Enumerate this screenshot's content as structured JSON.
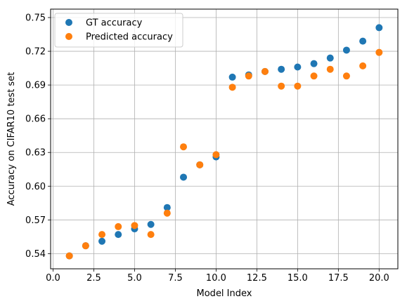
{
  "chart_data": {
    "type": "scatter",
    "xlabel": "Model Index",
    "ylabel": "Accuracy on CIFAR10 test set",
    "xlim": [
      -0.15,
      21.15
    ],
    "ylim": [
      0.5265,
      0.7575
    ],
    "xticks": [
      0.0,
      2.5,
      5.0,
      7.5,
      10.0,
      12.5,
      15.0,
      17.5,
      20.0
    ],
    "xtick_labels": [
      "0.0",
      "2.5",
      "5.0",
      "7.5",
      "10.0",
      "12.5",
      "15.0",
      "17.5",
      "20.0"
    ],
    "yticks": [
      0.54,
      0.57,
      0.6,
      0.63,
      0.66,
      0.69,
      0.72,
      0.75
    ],
    "ytick_labels": [
      "0.54",
      "0.57",
      "0.60",
      "0.63",
      "0.66",
      "0.69",
      "0.72",
      "0.75"
    ],
    "grid": true,
    "legend_position": "top-left",
    "series": [
      {
        "name": "GT accuracy",
        "color": "#1f77b4",
        "x": [
          1,
          2,
          3,
          4,
          5,
          6,
          7,
          8,
          9,
          10,
          11,
          12,
          13,
          14,
          15,
          16,
          17,
          18,
          19,
          20
        ],
        "y": [
          0.538,
          0.547,
          0.551,
          0.557,
          0.562,
          0.566,
          0.581,
          0.608,
          0.619,
          0.626,
          0.697,
          0.699,
          0.702,
          0.704,
          0.706,
          0.709,
          0.714,
          0.721,
          0.729,
          0.741
        ]
      },
      {
        "name": "Predicted accuracy",
        "color": "#ff7f0e",
        "x": [
          1,
          2,
          3,
          4,
          5,
          6,
          7,
          8,
          9,
          10,
          11,
          12,
          13,
          14,
          15,
          16,
          17,
          18,
          19,
          20
        ],
        "y": [
          0.538,
          0.547,
          0.557,
          0.564,
          0.565,
          0.557,
          0.576,
          0.635,
          0.619,
          0.628,
          0.688,
          0.698,
          0.702,
          0.689,
          0.689,
          0.698,
          0.704,
          0.698,
          0.707,
          0.719
        ]
      }
    ]
  }
}
